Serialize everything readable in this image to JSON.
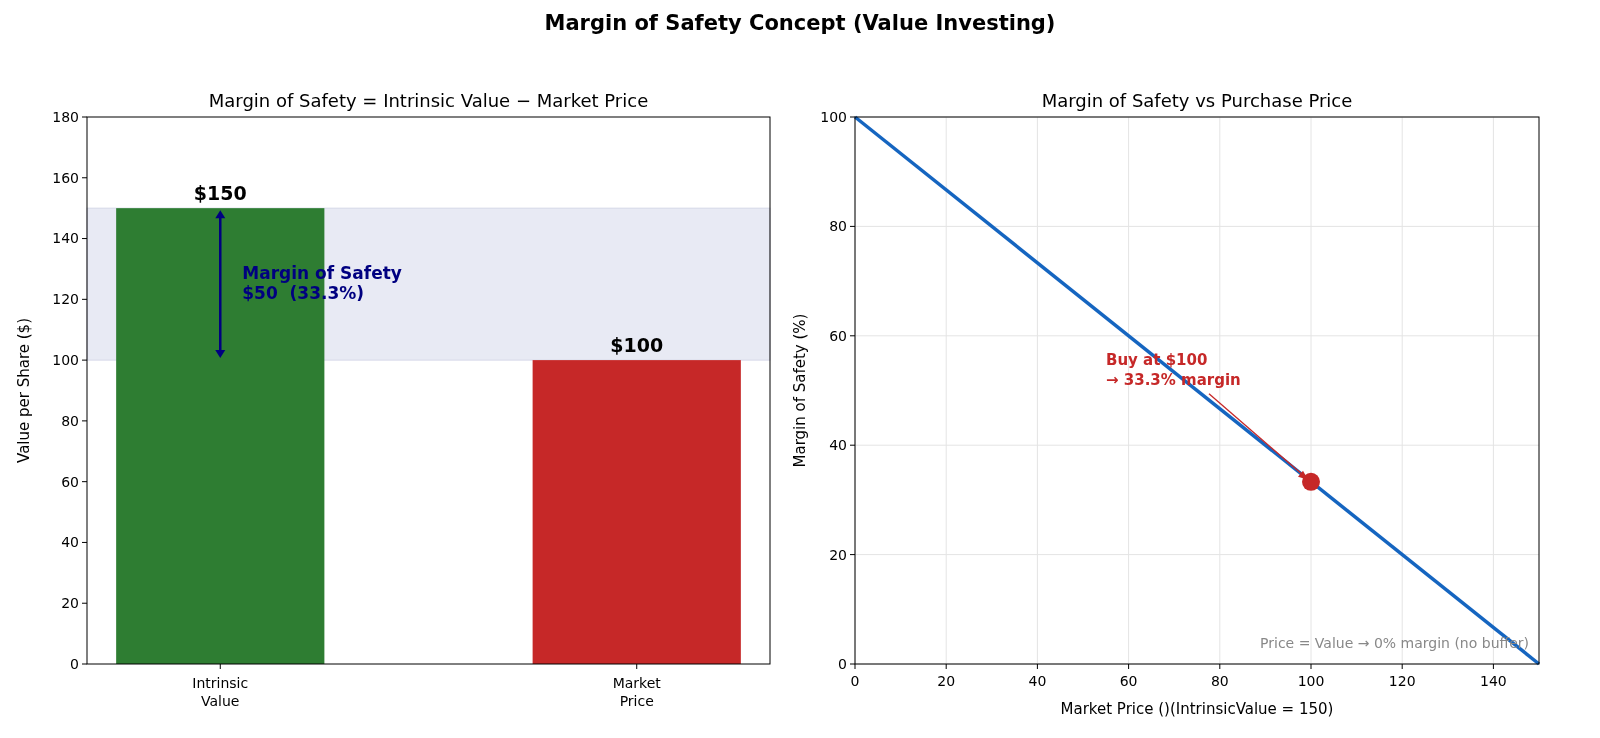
{
  "chart_data": [
    {
      "type": "bar",
      "title": "Margin of Safety = Intrinsic Value − Market Price",
      "ylabel": "Value per Share ($)",
      "categories": [
        "Intrinsic\nValue",
        "Market\nPrice"
      ],
      "values": [
        150,
        100
      ],
      "colors": [
        "#2e7d32",
        "#c62828"
      ],
      "value_labels": [
        "$150",
        "$100"
      ],
      "ylim": [
        0,
        180
      ],
      "yticks": [
        0,
        20,
        40,
        60,
        80,
        100,
        120,
        140,
        160,
        180
      ],
      "bands": [
        {
          "axis": "y",
          "from": 100,
          "to": 150,
          "label": "Margin of Safety\n$50  (33.3%)",
          "color": "#e8eaf4"
        }
      ],
      "annotations": [
        "Margin of Safety Concept (Value Investing)"
      ]
    },
    {
      "type": "line",
      "title": "Margin of Safety vs Purchase Price",
      "xlabel": "Market Price ()(IntrinsicValue = 150)",
      "ylabel": "Margin of Safety (%)",
      "xlim": [
        0,
        150
      ],
      "ylim": [
        0,
        100
      ],
      "xticks": [
        0,
        20,
        40,
        60,
        80,
        100,
        120,
        140
      ],
      "yticks": [
        0,
        20,
        40,
        60,
        80,
        100
      ],
      "grid": true,
      "series": [
        {
          "type": "line",
          "x": [
            0,
            150
          ],
          "values": [
            100,
            0
          ],
          "color": "#1565c0"
        },
        {
          "type": "scatter",
          "x": [
            100
          ],
          "values": [
            33.3
          ],
          "color": "#c62828",
          "marker": "circle"
        }
      ],
      "annotations": [
        {
          "text": "Buy at $100\n→ 33.3% margin",
          "x": 100,
          "y": 33.3
        },
        "Price = Value → 0% margin (no buffer)"
      ]
    }
  ]
}
